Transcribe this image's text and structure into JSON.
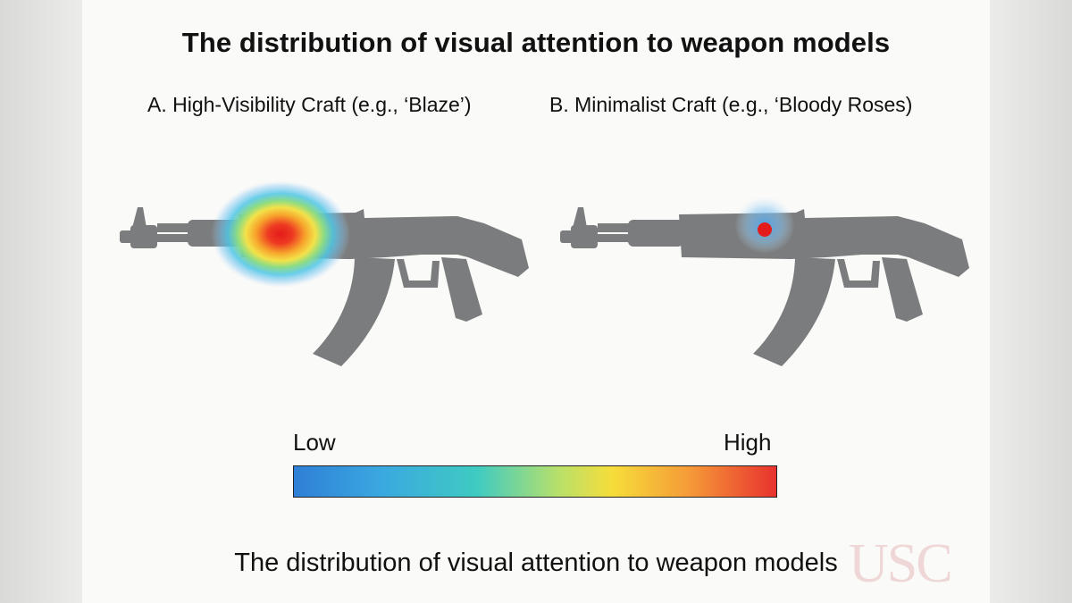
{
  "title": "The distribution of visual attention to weapon models",
  "panels": [
    {
      "label": "A. High-Visibility Craft (e.g., ‘Blaze’)",
      "attention": "broad"
    },
    {
      "label": "B. Minimalist Craft (e.g., ‘Bloody Roses)",
      "attention": "point"
    }
  ],
  "scale": {
    "low": "Low",
    "high": "High"
  },
  "caption": "The distribution of visual attention to weapon models",
  "watermark": "USC",
  "colors": {
    "weapon": "#7a7c7d",
    "low": "#2f7fd6",
    "high": "#e8322e"
  },
  "icons": [
    "rifle-silhouette-icon",
    "heatmap-blob",
    "university-seal-icon"
  ]
}
